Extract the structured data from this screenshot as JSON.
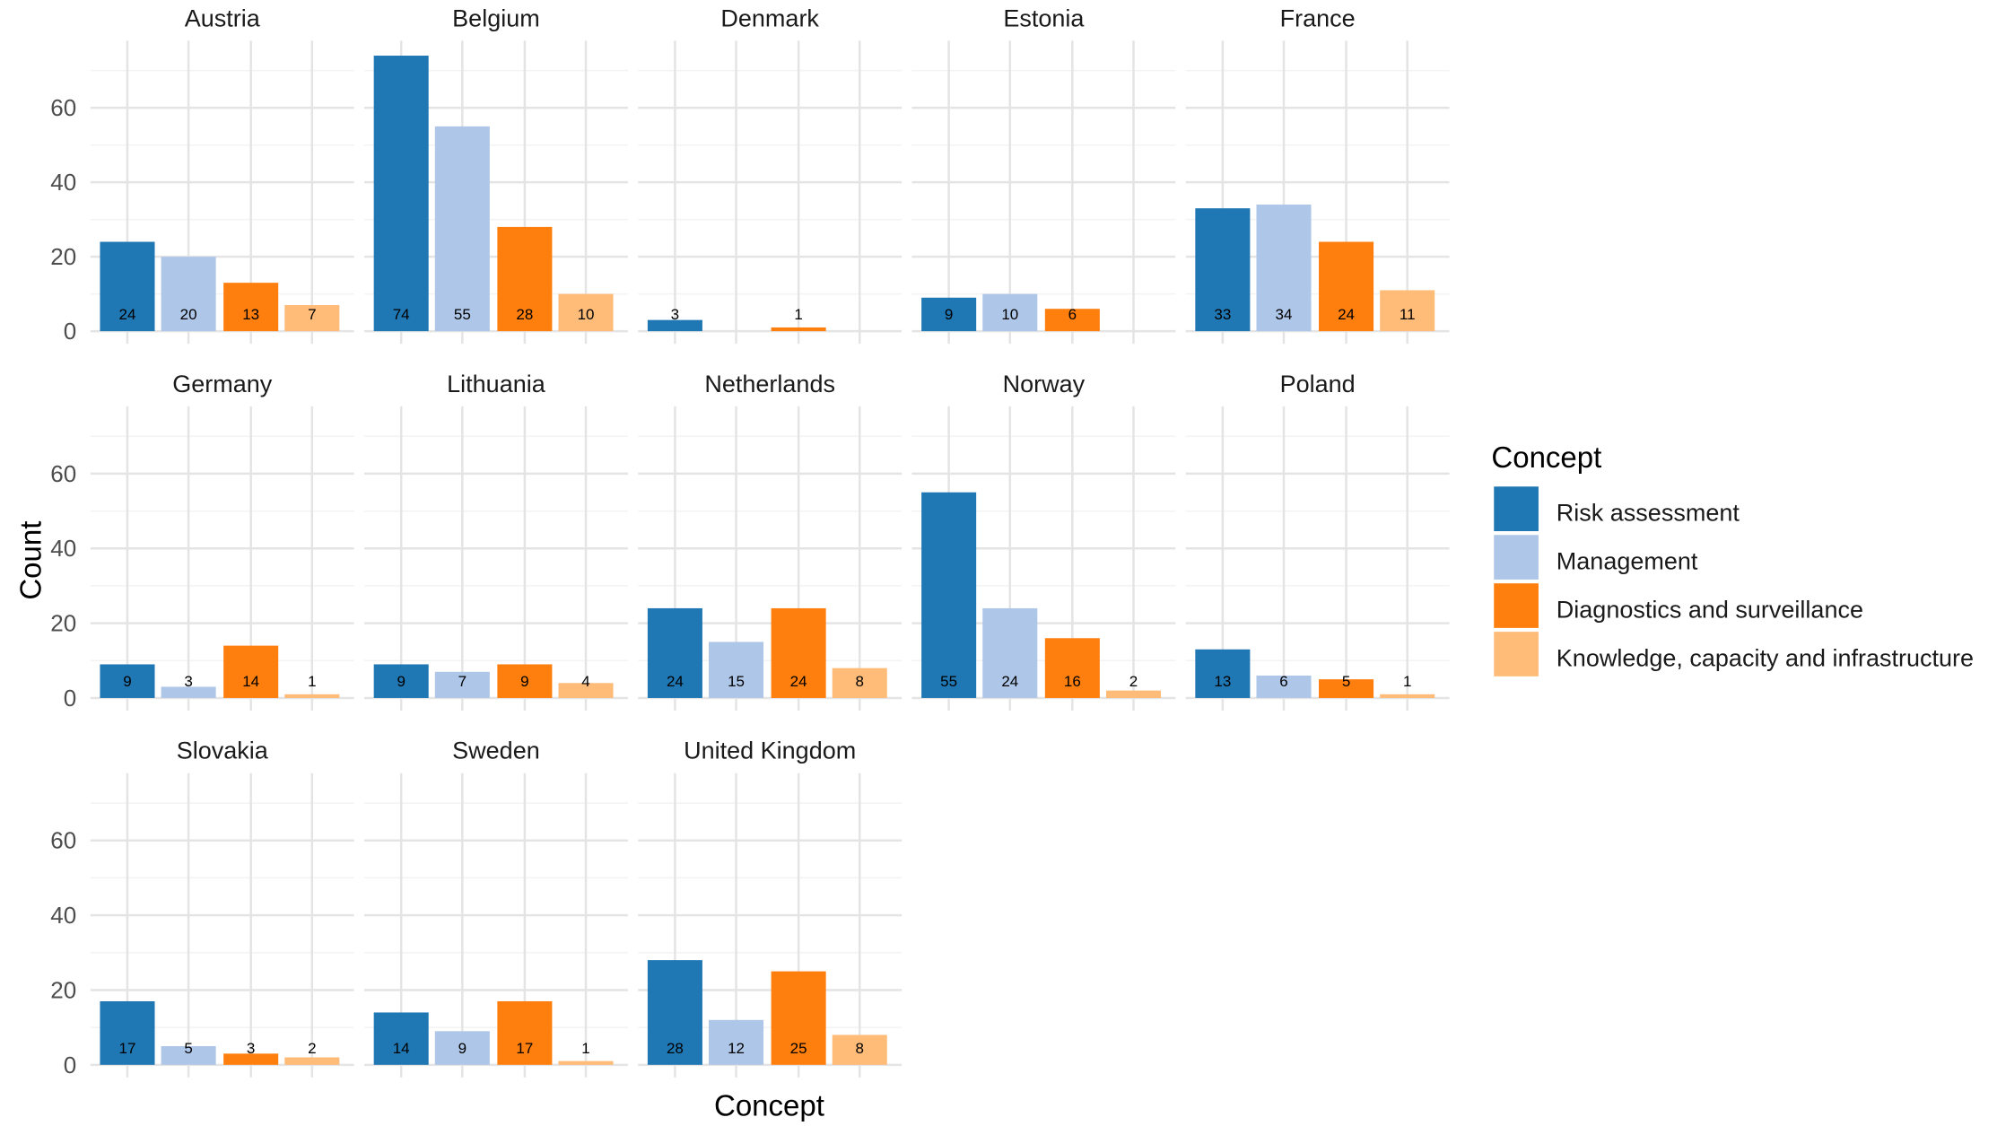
{
  "chart_data": {
    "type": "bar",
    "facet_by": "country",
    "categories": [
      "Risk assessment",
      "Management",
      "Diagnostics and surveillance",
      "Knowledge, capacity and infrastructure"
    ],
    "colors": [
      "#1f77b4",
      "#aec7e8",
      "#ff7f0e",
      "#ffbb78"
    ],
    "xlabel": "Concept",
    "ylabel": "Count",
    "ylim": [
      0,
      78
    ],
    "yticks": [
      0,
      20,
      40,
      60
    ],
    "grid": true,
    "legend": {
      "title": "Concept",
      "placement": "right",
      "entries": [
        "Risk assessment",
        "Management",
        "Diagnostics and surveillance",
        "Knowledge, capacity and infrastructure"
      ]
    },
    "panels": [
      {
        "name": "Austria",
        "values": [
          24,
          20,
          13,
          7
        ]
      },
      {
        "name": "Belgium",
        "values": [
          74,
          55,
          28,
          10
        ]
      },
      {
        "name": "Denmark",
        "values": [
          3,
          null,
          1,
          null
        ]
      },
      {
        "name": "Estonia",
        "values": [
          9,
          10,
          6,
          null
        ]
      },
      {
        "name": "France",
        "values": [
          33,
          34,
          24,
          11
        ]
      },
      {
        "name": "Germany",
        "values": [
          9,
          3,
          14,
          1
        ]
      },
      {
        "name": "Lithuania",
        "values": [
          9,
          7,
          9,
          4
        ]
      },
      {
        "name": "Netherlands",
        "values": [
          24,
          15,
          24,
          8
        ]
      },
      {
        "name": "Norway",
        "values": [
          55,
          24,
          16,
          2
        ]
      },
      {
        "name": "Poland",
        "values": [
          13,
          6,
          5,
          1
        ]
      },
      {
        "name": "Slovakia",
        "values": [
          17,
          5,
          3,
          2
        ]
      },
      {
        "name": "Sweden",
        "values": [
          14,
          9,
          17,
          1
        ]
      },
      {
        "name": "United Kingdom",
        "values": [
          28,
          12,
          25,
          8
        ]
      }
    ]
  }
}
